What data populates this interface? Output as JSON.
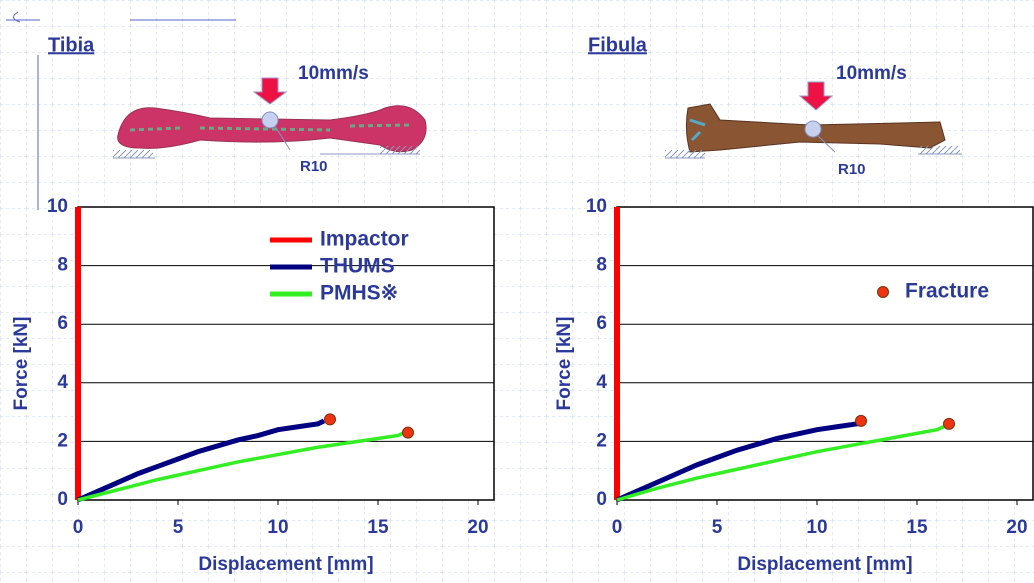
{
  "chart_data": [
    {
      "type": "line",
      "title": "Tibia",
      "speed_label": "10mm/s",
      "radius_label": "R10",
      "x_label": "Displacement  [mm]",
      "y_label": "Force [kN]",
      "xlim": [
        0,
        20.8
      ],
      "ylim": [
        0,
        10
      ],
      "xticks": [
        0,
        5,
        10,
        15,
        20
      ],
      "yticks": [
        0,
        2,
        4,
        6,
        8,
        10
      ],
      "grid": true,
      "legend": "upper-right",
      "series": [
        {
          "name": "Impactor",
          "color": "#ff0000",
          "kind": "line",
          "x": [
            0,
            0
          ],
          "values": [
            0,
            10
          ]
        },
        {
          "name": "THUMS",
          "color": "#000080",
          "kind": "line",
          "x": [
            0,
            1,
            2,
            3,
            4,
            5,
            6,
            7,
            8,
            9,
            10,
            11,
            12,
            12.3
          ],
          "values": [
            0,
            0.3,
            0.6,
            0.9,
            1.15,
            1.4,
            1.65,
            1.85,
            2.05,
            2.2,
            2.4,
            2.5,
            2.6,
            2.7
          ]
        },
        {
          "name": "PMHS※",
          "color": "#33ee22",
          "kind": "line",
          "x": [
            0,
            2,
            4,
            6,
            8,
            10,
            12,
            14,
            16,
            16.3
          ],
          "values": [
            0,
            0.35,
            0.7,
            1.0,
            1.3,
            1.55,
            1.8,
            2.0,
            2.2,
            2.3
          ]
        },
        {
          "color": "#ee3311",
          "kind": "scatter",
          "x": [
            12.6,
            16.5
          ],
          "values": [
            2.75,
            2.3
          ]
        }
      ]
    },
    {
      "type": "line",
      "title": "Fibula",
      "speed_label": "10mm/s",
      "radius_label": "R10",
      "x_label": "Displacement [mm]",
      "y_label": "Force  [kN]",
      "xlim": [
        0,
        20.8
      ],
      "ylim": [
        0,
        10
      ],
      "xticks": [
        0,
        5,
        10,
        15,
        20
      ],
      "yticks": [
        0,
        2,
        4,
        6,
        8,
        10
      ],
      "grid": true,
      "legend": "upper-right",
      "series": [
        {
          "color": "#ff0000",
          "kind": "line",
          "x": [
            0,
            0
          ],
          "values": [
            0,
            10
          ]
        },
        {
          "color": "#000080",
          "kind": "line",
          "x": [
            0,
            1,
            2,
            3,
            4,
            5,
            6,
            7,
            8,
            9,
            10,
            11,
            12,
            12.2
          ],
          "values": [
            0,
            0.3,
            0.6,
            0.9,
            1.2,
            1.45,
            1.7,
            1.9,
            2.1,
            2.25,
            2.4,
            2.5,
            2.6,
            2.65
          ]
        },
        {
          "color": "#33ee22",
          "kind": "line",
          "x": [
            0,
            2,
            4,
            6,
            8,
            10,
            12,
            14,
            16,
            16.5
          ],
          "values": [
            0,
            0.4,
            0.75,
            1.05,
            1.35,
            1.65,
            1.9,
            2.15,
            2.4,
            2.55
          ]
        },
        {
          "name": "Fracture",
          "color": "#ee3311",
          "kind": "scatter",
          "x": [
            12.2,
            16.6
          ],
          "values": [
            2.7,
            2.6
          ]
        }
      ]
    }
  ]
}
